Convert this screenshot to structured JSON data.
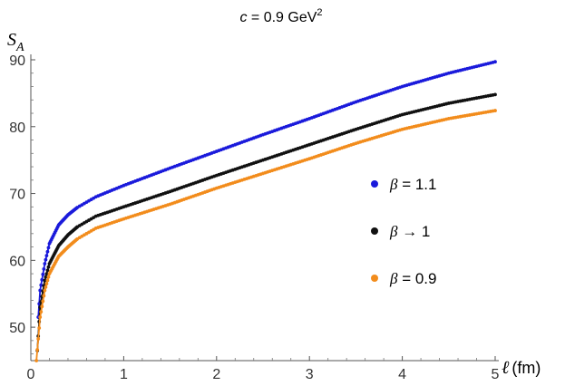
{
  "chart_data": {
    "type": "line",
    "title": "c = 0.9 GeV²",
    "title_parts": {
      "var": "c",
      "rest": " = 0.9 GeV",
      "sup": "2"
    },
    "xlabel": "ℓ (fm)",
    "xlabel_parts": {
      "symbol": "ℓ",
      "unit": "(fm)"
    },
    "ylabel": "S_A",
    "ylabel_parts": {
      "main": "S",
      "sub": "A"
    },
    "xlim": [
      0,
      5
    ],
    "ylim": [
      45,
      90
    ],
    "x_axis_crossing_y": 45,
    "x_ticks": [
      0,
      1,
      2,
      3,
      4,
      5
    ],
    "y_ticks": [
      50,
      60,
      70,
      80,
      90
    ],
    "grid": false,
    "legend_position": "right",
    "series": [
      {
        "name": "β = 1.1",
        "legend_parts": {
          "sym": "β",
          "rest": " = 1.1"
        },
        "color": "#1a1adb",
        "x": [
          0.08,
          0.1,
          0.15,
          0.2,
          0.3,
          0.4,
          0.5,
          0.7,
          1.0,
          1.5,
          2.0,
          2.5,
          3.0,
          3.5,
          4.0,
          4.5,
          5.0
        ],
        "y": [
          51.5,
          55.5,
          59.5,
          62.5,
          65.3,
          66.8,
          67.9,
          69.5,
          71.2,
          73.8,
          76.3,
          78.8,
          81.2,
          83.7,
          86.0,
          88.0,
          89.7
        ]
      },
      {
        "name": "β → 1",
        "legend_parts": {
          "sym": "β",
          "rest": " → 1"
        },
        "color": "#111111",
        "x": [
          0.07,
          0.1,
          0.15,
          0.2,
          0.3,
          0.4,
          0.5,
          0.7,
          1.0,
          1.5,
          2.0,
          2.5,
          3.0,
          3.5,
          4.0,
          4.5,
          5.0
        ],
        "y": [
          46.5,
          53.0,
          57.0,
          59.5,
          62.2,
          63.8,
          65.0,
          66.6,
          68.0,
          70.3,
          72.7,
          75.0,
          77.3,
          79.6,
          81.8,
          83.5,
          84.8
        ]
      },
      {
        "name": "β = 0.9",
        "legend_parts": {
          "sym": "β",
          "rest": " = 0.9"
        },
        "color": "#f28c1c",
        "x": [
          0.06,
          0.1,
          0.15,
          0.2,
          0.3,
          0.4,
          0.5,
          0.7,
          1.0,
          1.5,
          2.0,
          2.5,
          3.0,
          3.5,
          4.0,
          4.5,
          5.0
        ],
        "y": [
          45.0,
          51.5,
          55.5,
          58.0,
          60.6,
          62.0,
          63.2,
          64.8,
          66.2,
          68.4,
          70.8,
          73.0,
          75.2,
          77.5,
          79.6,
          81.2,
          82.4
        ]
      }
    ]
  }
}
